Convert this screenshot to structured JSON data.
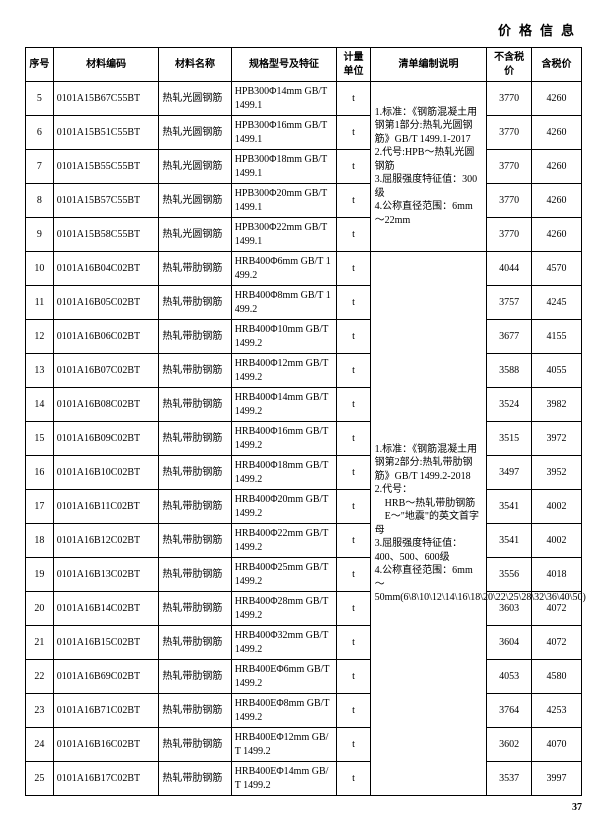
{
  "page": {
    "title": "价格信息",
    "number": "37"
  },
  "columns": {
    "seq": "序号",
    "code": "材料编码",
    "name": "材料名称",
    "spec": "规格型号及特征",
    "unit": "计量单位",
    "desc": "清单编制说明",
    "notax": "不含税价",
    "tax": "含税价"
  },
  "descriptions": {
    "group1": "1.标准：《钢筋混凝土用钢第1部分:热轧光圆钢筋》GB/T 1499.1-2017\n2.代号:HPB～热轧光圆钢筋\n3.屈服强度特征值：300级\n4.公称直径范围：6mm～22mm",
    "group2": "1.标准：《钢筋混凝土用钢第2部分:热轧带肋钢筋》GB/T 1499.2-2018\n2.代号：\n　HRB～热轧带肋钢筋\n　E～\"地震\"的英文首字母\n3.屈服强度特征值：400、500、600级\n4.公称直径范围：6mm　　～　50mm(6\\8\\10\\12\\14\\16\\18\\20\\22\\25\\28\\32\\36\\40\\50)"
  },
  "rows": [
    {
      "seq": "5",
      "code": "0101A15B67C55BT",
      "name": "热轧光圆钢筋",
      "spec": "HPB300Φ14mm GB/T 1499.1",
      "unit": "t",
      "notax": "3770",
      "tax": "4260",
      "group": 1,
      "gstart": true,
      "gspan": 5
    },
    {
      "seq": "6",
      "code": "0101A15B51C55BT",
      "name": "热轧光圆钢筋",
      "spec": "HPB300Φ16mm GB/T 1499.1",
      "unit": "t",
      "notax": "3770",
      "tax": "4260",
      "group": 1
    },
    {
      "seq": "7",
      "code": "0101A15B55C55BT",
      "name": "热轧光圆钢筋",
      "spec": "HPB300Φ18mm GB/T 1499.1",
      "unit": "t",
      "notax": "3770",
      "tax": "4260",
      "group": 1
    },
    {
      "seq": "8",
      "code": "0101A15B57C55BT",
      "name": "热轧光圆钢筋",
      "spec": "HPB300Φ20mm GB/T 1499.1",
      "unit": "t",
      "notax": "3770",
      "tax": "4260",
      "group": 1
    },
    {
      "seq": "9",
      "code": "0101A15B58C55BT",
      "name": "热轧光圆钢筋",
      "spec": "HPB300Φ22mm GB/T 1499.1",
      "unit": "t",
      "notax": "3770",
      "tax": "4260",
      "group": 1
    },
    {
      "seq": "10",
      "code": "0101A16B04C02BT",
      "name": "热轧带肋钢筋",
      "spec": "HRB400Φ6mm GB/T 1499.2",
      "unit": "t",
      "notax": "4044",
      "tax": "4570",
      "group": 2,
      "gstart": true,
      "gspan": 16
    },
    {
      "seq": "11",
      "code": "0101A16B05C02BT",
      "name": "热轧带肋钢筋",
      "spec": "HRB400Φ8mm GB/T 1499.2",
      "unit": "t",
      "notax": "3757",
      "tax": "4245",
      "group": 2
    },
    {
      "seq": "12",
      "code": "0101A16B06C02BT",
      "name": "热轧带肋钢筋",
      "spec": "HRB400Φ10mm GB/T 1499.2",
      "unit": "t",
      "notax": "3677",
      "tax": "4155",
      "group": 2
    },
    {
      "seq": "13",
      "code": "0101A16B07C02BT",
      "name": "热轧带肋钢筋",
      "spec": "HRB400Φ12mm GB/T 1499.2",
      "unit": "t",
      "notax": "3588",
      "tax": "4055",
      "group": 2
    },
    {
      "seq": "14",
      "code": "0101A16B08C02BT",
      "name": "热轧带肋钢筋",
      "spec": "HRB400Φ14mm GB/T 1499.2",
      "unit": "t",
      "notax": "3524",
      "tax": "3982",
      "group": 2
    },
    {
      "seq": "15",
      "code": "0101A16B09C02BT",
      "name": "热轧带肋钢筋",
      "spec": "HRB400Φ16mm GB/T 1499.2",
      "unit": "t",
      "notax": "3515",
      "tax": "3972",
      "group": 2
    },
    {
      "seq": "16",
      "code": "0101A16B10C02BT",
      "name": "热轧带肋钢筋",
      "spec": "HRB400Φ18mm GB/T 1499.2",
      "unit": "t",
      "notax": "3497",
      "tax": "3952",
      "group": 2
    },
    {
      "seq": "17",
      "code": "0101A16B11C02BT",
      "name": "热轧带肋钢筋",
      "spec": "HRB400Φ20mm GB/T 1499.2",
      "unit": "t",
      "notax": "3541",
      "tax": "4002",
      "group": 2
    },
    {
      "seq": "18",
      "code": "0101A16B12C02BT",
      "name": "热轧带肋钢筋",
      "spec": "HRB400Φ22mm GB/T 1499.2",
      "unit": "t",
      "notax": "3541",
      "tax": "4002",
      "group": 2
    },
    {
      "seq": "19",
      "code": "0101A16B13C02BT",
      "name": "热轧带肋钢筋",
      "spec": "HRB400Φ25mm GB/T 1499.2",
      "unit": "t",
      "notax": "3556",
      "tax": "4018",
      "group": 2
    },
    {
      "seq": "20",
      "code": "0101A16B14C02BT",
      "name": "热轧带肋钢筋",
      "spec": "HRB400Φ28mm GB/T 1499.2",
      "unit": "t",
      "notax": "3603",
      "tax": "4072",
      "group": 2
    },
    {
      "seq": "21",
      "code": "0101A16B15C02BT",
      "name": "热轧带肋钢筋",
      "spec": "HRB400Φ32mm GB/T 1499.2",
      "unit": "t",
      "notax": "3604",
      "tax": "4072",
      "group": 2
    },
    {
      "seq": "22",
      "code": "0101A16B69C02BT",
      "name": "热轧带肋钢筋",
      "spec": "HRB400EΦ6mm GB/T 1499.2",
      "unit": "t",
      "notax": "4053",
      "tax": "4580",
      "group": 2
    },
    {
      "seq": "23",
      "code": "0101A16B71C02BT",
      "name": "热轧带肋钢筋",
      "spec": "HRB400EΦ8mm GB/T 1499.2",
      "unit": "t",
      "notax": "3764",
      "tax": "4253",
      "group": 2
    },
    {
      "seq": "24",
      "code": "0101A16B16C02BT",
      "name": "热轧带肋钢筋",
      "spec": "HRB400EΦ12mm GB/T 1499.2",
      "unit": "t",
      "notax": "3602",
      "tax": "4070",
      "group": 2
    },
    {
      "seq": "25",
      "code": "0101A16B17C02BT",
      "name": "热轧带肋钢筋",
      "spec": "HRB400EΦ14mm GB/T 1499.2",
      "unit": "t",
      "notax": "3537",
      "tax": "3997",
      "group": 2
    }
  ],
  "colwidths": {
    "seq": "5%",
    "code": "19%",
    "name": "13%",
    "spec": "19%",
    "unit": "6%",
    "desc": "21%",
    "notax": "8%",
    "tax": "9%"
  }
}
